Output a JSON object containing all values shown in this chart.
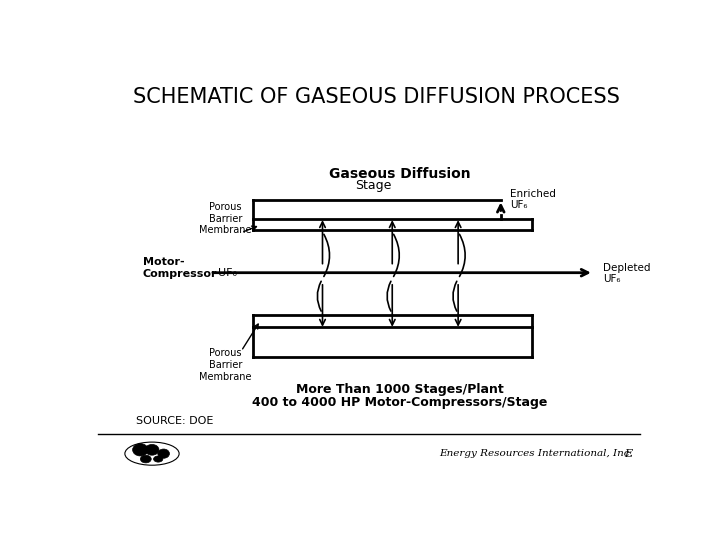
{
  "title": "SCHEMATIC OF GASEOUS DIFFUSION PROCESS",
  "title_fontsize": 15,
  "bg_color": "#ffffff",
  "text_color": "#000000",
  "diagram": {
    "gaseous_diffusion_label_bold": "Gaseous Diffusion",
    "stage_label": "Stage",
    "porous_barrier_top": "Porous\nBarrier\nMembrane",
    "porous_barrier_bottom": "Porous\nBarrier\nMembrane",
    "enriched_uf6_line1": "Enriched",
    "enriched_uf6_line2": "UF₆",
    "depleted_uf6_line1": "Depleted",
    "depleted_uf6_line2": "UF₆",
    "uf6_label": "UF₆",
    "motor_compressor": "Motor-\nCompressor",
    "more_than_line1": "More Than 1000 Stages/Plant",
    "more_than_line2": "400 to 4000 HP Motor-Compressors/Stage",
    "source": "SOURCE: DOE",
    "footer_E": "E",
    "footer_nergy": "nergy ",
    "footer_R": "R",
    "footer_esources": "esources ",
    "footer_I": "I",
    "footer_nternational": "nternational, ",
    "footer_Inc_I": "I",
    "footer_nc": "nc."
  }
}
